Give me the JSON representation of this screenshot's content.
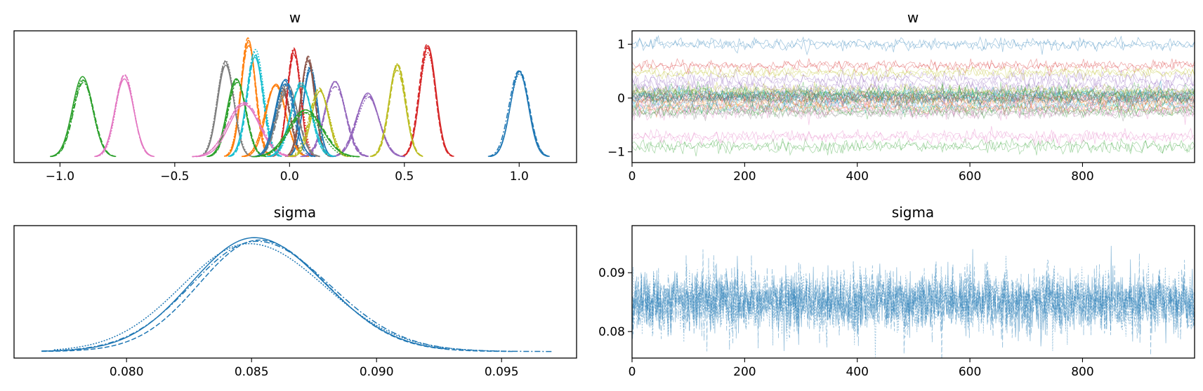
{
  "chart_data": [
    {
      "type": "line",
      "subtype": "kde",
      "title": "w",
      "xlabel": "",
      "ylabel": "",
      "xlim": [
        -1.2,
        1.25
      ],
      "xticks": [
        -1.0,
        -0.5,
        0.0,
        0.5,
        1.0
      ],
      "xtick_labels": [
        "−1.0",
        "−0.5",
        "0.0",
        "0.5",
        "1.0"
      ],
      "yticks_shown": false,
      "grid": false,
      "chains": 4,
      "chain_linestyles": [
        "solid",
        "dashed",
        "dashdot",
        "dotted"
      ],
      "series": [
        {
          "color": "#1f77b4",
          "mean": 1.0,
          "sd": 0.04,
          "peak": 0.7
        },
        {
          "color": "#ff7f0e",
          "mean": -0.18,
          "sd": 0.032,
          "peak": 0.96
        },
        {
          "color": "#2ca02c",
          "mean": -0.9,
          "sd": 0.045,
          "peak": 0.64
        },
        {
          "color": "#d62728",
          "mean": 0.6,
          "sd": 0.035,
          "peak": 0.9
        },
        {
          "color": "#9467bd",
          "mean": 0.34,
          "sd": 0.05,
          "peak": 0.52
        },
        {
          "color": "#8c564b",
          "mean": -0.03,
          "sd": 0.035,
          "peak": 0.56
        },
        {
          "color": "#e377c2",
          "mean": -0.72,
          "sd": 0.04,
          "peak": 0.68
        },
        {
          "color": "#7f7f7f",
          "mean": -0.28,
          "sd": 0.035,
          "peak": 0.8
        },
        {
          "color": "#bcbd22",
          "mean": 0.47,
          "sd": 0.035,
          "peak": 0.75
        },
        {
          "color": "#17becf",
          "mean": -0.15,
          "sd": 0.035,
          "peak": 0.85
        },
        {
          "color": "#1f77b4",
          "mean": 0.09,
          "sd": 0.03,
          "peak": 0.73
        },
        {
          "color": "#ff7f0e",
          "mean": -0.06,
          "sd": 0.045,
          "peak": 0.6
        },
        {
          "color": "#2ca02c",
          "mean": -0.23,
          "sd": 0.04,
          "peak": 0.62
        },
        {
          "color": "#d62728",
          "mean": 0.02,
          "sd": 0.03,
          "peak": 0.88
        },
        {
          "color": "#9467bd",
          "mean": 0.2,
          "sd": 0.045,
          "peak": 0.6
        },
        {
          "color": "#8c564b",
          "mean": 0.08,
          "sd": 0.03,
          "peak": 0.82
        },
        {
          "color": "#e377c2",
          "mean": -0.2,
          "sd": 0.07,
          "peak": 0.45
        },
        {
          "color": "#7f7f7f",
          "mean": -0.01,
          "sd": 0.045,
          "peak": 0.58
        },
        {
          "color": "#bcbd22",
          "mean": 0.13,
          "sd": 0.04,
          "peak": 0.55
        },
        {
          "color": "#17becf",
          "mean": 0.05,
          "sd": 0.045,
          "peak": 0.6
        },
        {
          "color": "#1f77b4",
          "mean": -0.02,
          "sd": 0.04,
          "peak": 0.62
        },
        {
          "color": "#2ca02c",
          "mean": 0.07,
          "sd": 0.07,
          "peak": 0.38
        }
      ]
    },
    {
      "type": "line",
      "subtype": "trace",
      "title": "w",
      "xlabel": "",
      "ylabel": "",
      "xlim": [
        0,
        999
      ],
      "ylim": [
        -1.2,
        1.25
      ],
      "xticks": [
        0,
        200,
        400,
        600,
        800
      ],
      "xtick_labels": [
        "0",
        "200",
        "400",
        "600",
        "800"
      ],
      "yticks": [
        -1,
        0,
        1
      ],
      "ytick_labels": [
        "−1",
        "0",
        "1"
      ],
      "grid": false,
      "draws": 1000,
      "series_levels": [
        1.0,
        -0.18,
        -0.9,
        0.6,
        0.34,
        -0.03,
        -0.72,
        -0.28,
        0.47,
        -0.15,
        0.09,
        -0.06,
        -0.23,
        0.02,
        0.2,
        0.08,
        -0.2,
        -0.01,
        0.13,
        0.05,
        -0.02,
        0.07
      ]
    },
    {
      "type": "line",
      "subtype": "kde",
      "title": "sigma",
      "xlabel": "",
      "ylabel": "",
      "xlim": [
        0.0755,
        0.098
      ],
      "xticks": [
        0.08,
        0.085,
        0.09,
        0.095
      ],
      "xtick_labels": [
        "0.080",
        "0.085",
        "0.090",
        "0.095"
      ],
      "yticks_shown": false,
      "grid": false,
      "color": "#1f77b4",
      "chains": [
        {
          "linestyle": "solid",
          "mean": 0.0851,
          "sd": 0.0025,
          "peak": 0.95,
          "range": [
            0.0766,
            0.0928
          ]
        },
        {
          "linestyle": "dashed",
          "mean": 0.0853,
          "sd": 0.0024,
          "peak": 0.93,
          "range": [
            0.0766,
            0.0955
          ]
        },
        {
          "linestyle": "dashdot",
          "mean": 0.0852,
          "sd": 0.0026,
          "peak": 0.92,
          "range": [
            0.0766,
            0.097
          ]
        },
        {
          "linestyle": "dotted",
          "mean": 0.0849,
          "sd": 0.0027,
          "peak": 0.9,
          "range": [
            0.0771,
            0.095
          ]
        }
      ]
    },
    {
      "type": "line",
      "subtype": "trace",
      "title": "sigma",
      "xlabel": "",
      "ylabel": "",
      "xlim": [
        0,
        999
      ],
      "ylim": [
        0.0755,
        0.098
      ],
      "xticks": [
        0,
        200,
        400,
        600,
        800
      ],
      "xtick_labels": [
        "0",
        "200",
        "400",
        "600",
        "800"
      ],
      "yticks": [
        0.08,
        0.09
      ],
      "ytick_labels": [
        "0.08",
        "0.09"
      ],
      "grid": false,
      "color": "#1f77b4",
      "draws": 1000,
      "mean": 0.085,
      "sd": 0.0025
    }
  ]
}
